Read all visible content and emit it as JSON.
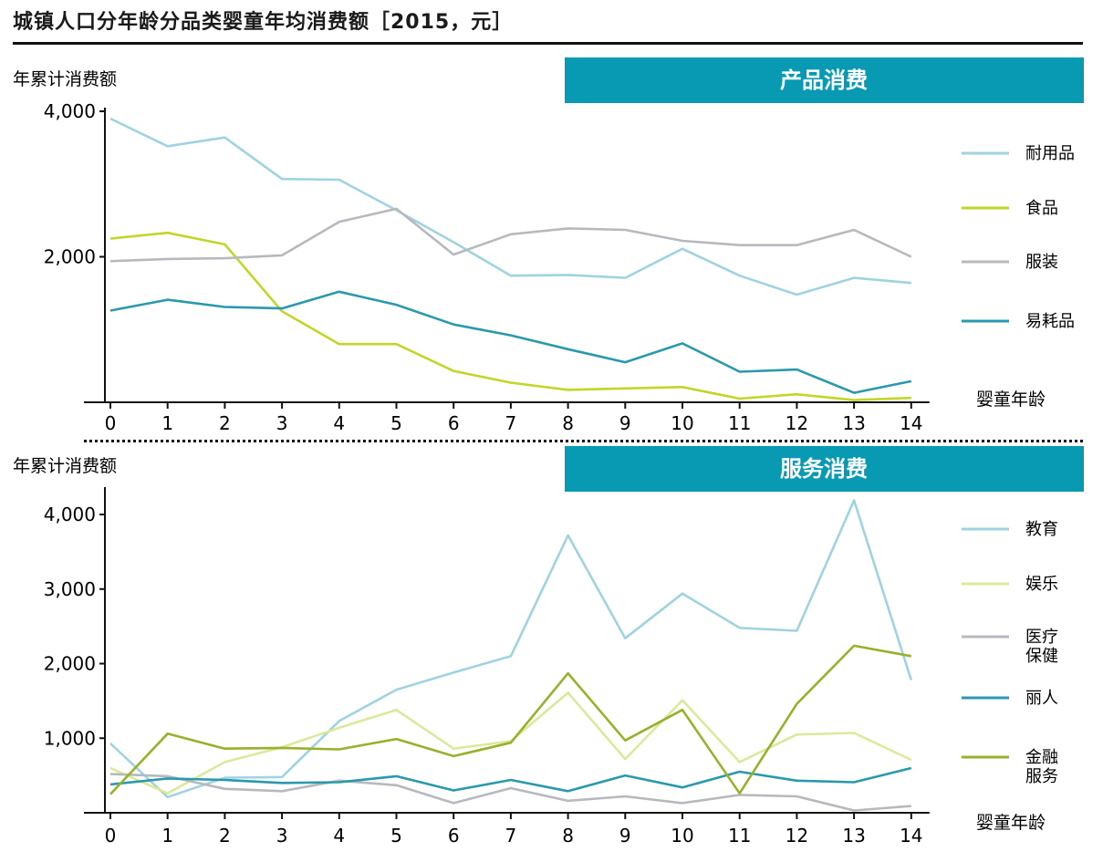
{
  "title": "城镇人口分年龄分品类婴童年均消费额［2015，元］",
  "chart_data": [
    {
      "type": "line",
      "panel_title": "产品消费",
      "ylabel": "年累计消费额",
      "xlabel": "婴童年龄",
      "ylim": [
        0,
        4000
      ],
      "yticks": [
        2000,
        4000
      ],
      "ytick_labels": [
        "2,000",
        "4,000"
      ],
      "x": [
        0,
        1,
        2,
        3,
        4,
        5,
        6,
        7,
        8,
        9,
        10,
        11,
        12,
        13,
        14
      ],
      "series": [
        {
          "name": "耐用品",
          "color": "#9fd3e2",
          "values": [
            3900,
            3520,
            3640,
            3070,
            3060,
            2640,
            2200,
            1740,
            1750,
            1710,
            2110,
            1740,
            1480,
            1710,
            1640
          ]
        },
        {
          "name": "食品",
          "color": "#c3d626",
          "values": [
            2250,
            2330,
            2170,
            1250,
            800,
            800,
            430,
            270,
            170,
            190,
            210,
            50,
            110,
            30,
            60
          ]
        },
        {
          "name": "服装",
          "color": "#b6b9bd",
          "values": [
            1940,
            1970,
            1980,
            2020,
            2480,
            2660,
            2030,
            2310,
            2390,
            2370,
            2220,
            2160,
            2160,
            2370,
            2000
          ]
        },
        {
          "name": "易耗品",
          "color": "#2a99ad",
          "values": [
            1260,
            1410,
            1310,
            1290,
            1520,
            1340,
            1070,
            920,
            730,
            550,
            810,
            420,
            450,
            130,
            290
          ]
        }
      ]
    },
    {
      "type": "line",
      "panel_title": "服务消费",
      "ylabel": "年累计消费额",
      "xlabel": "婴童年龄",
      "ylim": [
        0,
        4000
      ],
      "yticks": [
        1000,
        2000,
        3000,
        4000
      ],
      "ytick_labels": [
        "1,000",
        "2,000",
        "3,000",
        "4,000"
      ],
      "x": [
        0,
        1,
        2,
        3,
        4,
        5,
        6,
        7,
        8,
        9,
        10,
        11,
        12,
        13,
        14
      ],
      "series": [
        {
          "name": "教育",
          "color": "#9fd3e2",
          "values": [
            930,
            210,
            470,
            480,
            1230,
            1650,
            1880,
            2100,
            3720,
            2340,
            2940,
            2480,
            2440,
            4190,
            1780
          ]
        },
        {
          "name": "娱乐",
          "color": "#dde89a",
          "values": [
            600,
            260,
            680,
            880,
            1140,
            1380,
            860,
            960,
            1610,
            720,
            1510,
            680,
            1050,
            1070,
            710
          ]
        },
        {
          "name": "医疗\n保健",
          "color": "#b6b9bd",
          "values": [
            520,
            490,
            320,
            290,
            430,
            370,
            130,
            330,
            160,
            220,
            130,
            240,
            220,
            30,
            90
          ]
        },
        {
          "name": "丽人",
          "color": "#2a99ad",
          "values": [
            380,
            460,
            440,
            400,
            410,
            490,
            300,
            440,
            290,
            500,
            340,
            550,
            430,
            410,
            600
          ]
        },
        {
          "name": "金融\n服务",
          "color": "#99b02b",
          "values": [
            250,
            1060,
            860,
            870,
            850,
            990,
            760,
            940,
            1870,
            970,
            1380,
            260,
            1460,
            2240,
            2100
          ]
        }
      ]
    }
  ]
}
